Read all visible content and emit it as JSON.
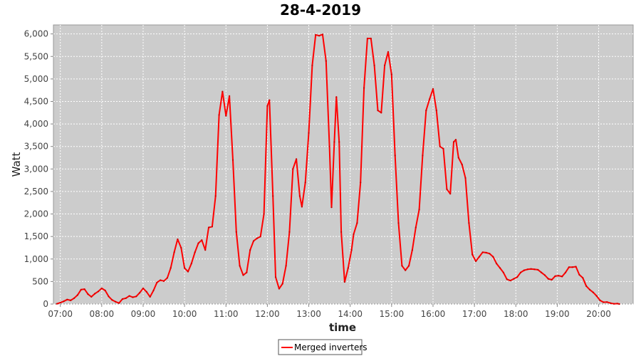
{
  "chart_data": {
    "type": "line",
    "title": "28-4-2019",
    "xlabel": "time",
    "ylabel": "Watt",
    "ylim": [
      0,
      6200
    ],
    "xlim": [
      "06:50",
      "20:50"
    ],
    "grid": true,
    "legend_position": "bottom",
    "colors": {
      "series": "#ff0000",
      "plot_background": "#cccccc",
      "grid": "#ffffff"
    },
    "x_ticks": [
      "07:00",
      "08:00",
      "09:00",
      "10:00",
      "11:00",
      "12:00",
      "13:00",
      "14:00",
      "15:00",
      "16:00",
      "17:00",
      "18:00",
      "19:00",
      "20:00"
    ],
    "y_ticks": [
      "0",
      "500",
      "1,000",
      "1,500",
      "2,000",
      "2,500",
      "3,000",
      "3,500",
      "4,000",
      "4,500",
      "5,000",
      "5,500",
      "6,000"
    ],
    "series": [
      {
        "name": "Merged inverters",
        "points": [
          [
            "06:55",
            5
          ],
          [
            "07:00",
            30
          ],
          [
            "07:05",
            60
          ],
          [
            "07:10",
            100
          ],
          [
            "07:15",
            80
          ],
          [
            "07:20",
            130
          ],
          [
            "07:25",
            200
          ],
          [
            "07:30",
            320
          ],
          [
            "07:35",
            330
          ],
          [
            "07:40",
            220
          ],
          [
            "07:45",
            160
          ],
          [
            "07:50",
            230
          ],
          [
            "07:55",
            280
          ],
          [
            "08:00",
            350
          ],
          [
            "08:05",
            300
          ],
          [
            "08:10",
            170
          ],
          [
            "08:15",
            90
          ],
          [
            "08:20",
            50
          ],
          [
            "08:25",
            20
          ],
          [
            "08:30",
            110
          ],
          [
            "08:35",
            130
          ],
          [
            "08:40",
            180
          ],
          [
            "08:45",
            150
          ],
          [
            "08:50",
            170
          ],
          [
            "08:55",
            250
          ],
          [
            "09:00",
            350
          ],
          [
            "09:05",
            270
          ],
          [
            "09:10",
            160
          ],
          [
            "09:15",
            300
          ],
          [
            "09:20",
            480
          ],
          [
            "09:25",
            530
          ],
          [
            "09:30",
            510
          ],
          [
            "09:35",
            580
          ],
          [
            "09:40",
            800
          ],
          [
            "09:45",
            1150
          ],
          [
            "09:50",
            1440
          ],
          [
            "09:55",
            1250
          ],
          [
            "10:00",
            800
          ],
          [
            "10:05",
            720
          ],
          [
            "10:10",
            900
          ],
          [
            "10:15",
            1150
          ],
          [
            "10:20",
            1350
          ],
          [
            "10:25",
            1420
          ],
          [
            "10:30",
            1200
          ],
          [
            "10:35",
            1700
          ],
          [
            "10:40",
            1720
          ],
          [
            "10:45",
            2400
          ],
          [
            "10:50",
            4200
          ],
          [
            "10:55",
            4720
          ],
          [
            "11:00",
            4180
          ],
          [
            "11:05",
            4620
          ],
          [
            "11:10",
            3200
          ],
          [
            "11:15",
            1600
          ],
          [
            "11:20",
            850
          ],
          [
            "11:25",
            640
          ],
          [
            "11:30",
            700
          ],
          [
            "11:35",
            1200
          ],
          [
            "11:40",
            1400
          ],
          [
            "11:45",
            1460
          ],
          [
            "11:50",
            1500
          ],
          [
            "11:55",
            2000
          ],
          [
            "12:00",
            4400
          ],
          [
            "12:03",
            4530
          ],
          [
            "12:08",
            2400
          ],
          [
            "12:12",
            600
          ],
          [
            "12:17",
            340
          ],
          [
            "12:22",
            450
          ],
          [
            "12:27",
            850
          ],
          [
            "12:32",
            1600
          ],
          [
            "12:37",
            3000
          ],
          [
            "12:42",
            3220
          ],
          [
            "12:47",
            2400
          ],
          [
            "12:50",
            2160
          ],
          [
            "12:55",
            2700
          ],
          [
            "13:00",
            3800
          ],
          [
            "13:05",
            5300
          ],
          [
            "13:10",
            5980
          ],
          [
            "13:15",
            5960
          ],
          [
            "13:20",
            5990
          ],
          [
            "13:25",
            5400
          ],
          [
            "13:30",
            3500
          ],
          [
            "13:33",
            2150
          ],
          [
            "13:37",
            3600
          ],
          [
            "13:40",
            4600
          ],
          [
            "13:44",
            3600
          ],
          [
            "13:47",
            1600
          ],
          [
            "13:52",
            490
          ],
          [
            "13:57",
            800
          ],
          [
            "14:02",
            1200
          ],
          [
            "14:05",
            1550
          ],
          [
            "14:10",
            1800
          ],
          [
            "14:15",
            2700
          ],
          [
            "14:20",
            4800
          ],
          [
            "14:25",
            5900
          ],
          [
            "14:30",
            5900
          ],
          [
            "14:35",
            5300
          ],
          [
            "14:40",
            4300
          ],
          [
            "14:45",
            4250
          ],
          [
            "14:50",
            5300
          ],
          [
            "14:55",
            5600
          ],
          [
            "15:00",
            5100
          ],
          [
            "15:05",
            3300
          ],
          [
            "15:10",
            1800
          ],
          [
            "15:15",
            850
          ],
          [
            "15:20",
            750
          ],
          [
            "15:25",
            850
          ],
          [
            "15:30",
            1200
          ],
          [
            "15:35",
            1700
          ],
          [
            "15:40",
            2100
          ],
          [
            "15:45",
            3300
          ],
          [
            "15:50",
            4300
          ],
          [
            "15:55",
            4550
          ],
          [
            "16:00",
            4780
          ],
          [
            "16:05",
            4300
          ],
          [
            "16:10",
            3500
          ],
          [
            "16:15",
            3450
          ],
          [
            "16:20",
            2550
          ],
          [
            "16:25",
            2450
          ],
          [
            "16:30",
            3600
          ],
          [
            "16:33",
            3650
          ],
          [
            "16:37",
            3250
          ],
          [
            "16:42",
            3100
          ],
          [
            "16:47",
            2800
          ],
          [
            "16:52",
            1800
          ],
          [
            "16:57",
            1100
          ],
          [
            "17:02",
            950
          ],
          [
            "17:07",
            1050
          ],
          [
            "17:12",
            1150
          ],
          [
            "17:17",
            1140
          ],
          [
            "17:22",
            1120
          ],
          [
            "17:27",
            1050
          ],
          [
            "17:32",
            900
          ],
          [
            "17:37",
            800
          ],
          [
            "17:42",
            700
          ],
          [
            "17:47",
            550
          ],
          [
            "17:52",
            520
          ],
          [
            "17:57",
            560
          ],
          [
            "18:02",
            600
          ],
          [
            "18:07",
            700
          ],
          [
            "18:12",
            750
          ],
          [
            "18:17",
            770
          ],
          [
            "18:22",
            780
          ],
          [
            "18:27",
            770
          ],
          [
            "18:32",
            760
          ],
          [
            "18:37",
            700
          ],
          [
            "18:42",
            640
          ],
          [
            "18:47",
            560
          ],
          [
            "18:52",
            540
          ],
          [
            "18:57",
            620
          ],
          [
            "19:02",
            630
          ],
          [
            "19:07",
            610
          ],
          [
            "19:12",
            700
          ],
          [
            "19:17",
            820
          ],
          [
            "19:22",
            820
          ],
          [
            "19:27",
            830
          ],
          [
            "19:32",
            650
          ],
          [
            "19:37",
            580
          ],
          [
            "19:42",
            400
          ],
          [
            "19:47",
            320
          ],
          [
            "19:52",
            260
          ],
          [
            "19:57",
            180
          ],
          [
            "20:02",
            80
          ],
          [
            "20:07",
            40
          ],
          [
            "20:12",
            45
          ],
          [
            "20:17",
            20
          ],
          [
            "20:22",
            5
          ],
          [
            "20:27",
            10
          ],
          [
            "20:30",
            0
          ]
        ]
      }
    ]
  }
}
